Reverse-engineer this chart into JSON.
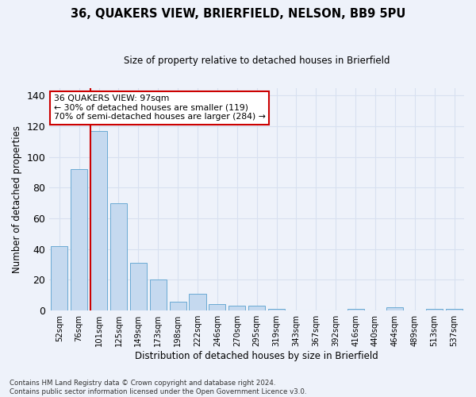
{
  "title": "36, QUAKERS VIEW, BRIERFIELD, NELSON, BB9 5PU",
  "subtitle": "Size of property relative to detached houses in Brierfield",
  "xlabel": "Distribution of detached houses by size in Brierfield",
  "ylabel": "Number of detached properties",
  "categories": [
    "52sqm",
    "76sqm",
    "101sqm",
    "125sqm",
    "149sqm",
    "173sqm",
    "198sqm",
    "222sqm",
    "246sqm",
    "270sqm",
    "295sqm",
    "319sqm",
    "343sqm",
    "367sqm",
    "392sqm",
    "416sqm",
    "440sqm",
    "464sqm",
    "489sqm",
    "513sqm",
    "537sqm"
  ],
  "values": [
    42,
    92,
    117,
    70,
    31,
    20,
    6,
    11,
    4,
    3,
    3,
    1,
    0,
    0,
    0,
    1,
    0,
    2,
    0,
    1,
    1
  ],
  "bar_color": "#c5d9ef",
  "bar_edge_color": "#6aaad4",
  "vline_color": "#cc0000",
  "vline_index": 2,
  "annotation_text": "36 QUAKERS VIEW: 97sqm\n← 30% of detached houses are smaller (119)\n70% of semi-detached houses are larger (284) →",
  "annotation_box_color": "#ffffff",
  "annotation_box_edge_color": "#cc0000",
  "ylim": [
    0,
    145
  ],
  "yticks": [
    0,
    20,
    40,
    60,
    80,
    100,
    120,
    140
  ],
  "background_color": "#eef2fa",
  "grid_color": "#d8e0f0",
  "footer_line1": "Contains HM Land Registry data © Crown copyright and database right 2024.",
  "footer_line2": "Contains public sector information licensed under the Open Government Licence v3.0."
}
